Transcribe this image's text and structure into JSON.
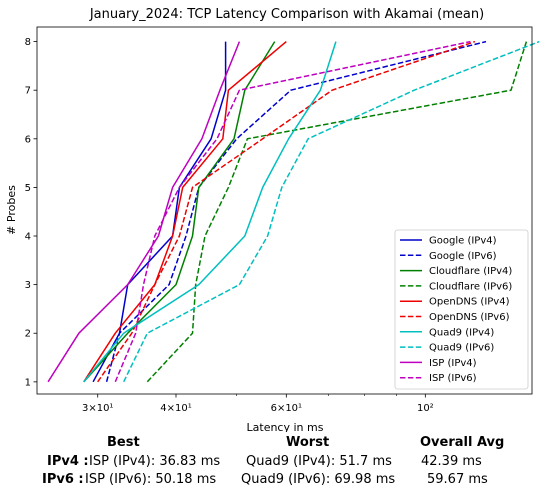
{
  "chart_data": {
    "type": "line",
    "title": "January_2024: TCP Latency Comparison with Akamai (mean)",
    "xlabel": "Latency in ms",
    "ylabel": "# Probes",
    "x_scale": "log",
    "xlim": [
      24,
      148
    ],
    "ylim": [
      0.75,
      8.3
    ],
    "x_ticks": [
      {
        "value": 30,
        "label": "3×10¹"
      },
      {
        "value": 40,
        "label": "4×10¹"
      },
      {
        "value": 60,
        "label": "6×10¹"
      },
      {
        "value": 100,
        "label": "10²"
      }
    ],
    "y_ticks": [
      1,
      2,
      3,
      4,
      5,
      6,
      7,
      8
    ],
    "legend_position": "lower-right",
    "series": [
      {
        "name": "Google (IPv4)",
        "color": "#0000cc",
        "dash": "solid",
        "x": [
          29.5,
          32.5,
          33.5,
          39.5,
          40.5,
          45.5,
          48.0,
          48.0
        ],
        "y": [
          1,
          2,
          3,
          4,
          5,
          6,
          7,
          8
        ]
      },
      {
        "name": "Google (IPv6)",
        "color": "#0000cc",
        "dash": "dashed",
        "x": [
          31.0,
          32.5,
          39.0,
          41.5,
          43.5,
          50.0,
          61.0,
          125.0
        ],
        "y": [
          1,
          2,
          3,
          4,
          5,
          6,
          7,
          8
        ]
      },
      {
        "name": "Cloudflare (IPv4)",
        "color": "#008000",
        "dash": "solid",
        "x": [
          28.5,
          33.5,
          40.0,
          42.5,
          43.5,
          49.5,
          51.5,
          57.5
        ],
        "y": [
          1,
          2,
          3,
          4,
          5,
          6,
          7,
          8
        ]
      },
      {
        "name": "Cloudflare (IPv6)",
        "color": "#008000",
        "dash": "dashed",
        "x": [
          36.0,
          42.5,
          43.0,
          44.5,
          48.5,
          52.0,
          137.0,
          145.0
        ],
        "y": [
          1,
          2,
          3,
          4,
          5,
          6,
          7,
          8
        ]
      },
      {
        "name": "OpenDNS (IPv4)",
        "color": "#ee0000",
        "dash": "solid",
        "x": [
          28.5,
          32.0,
          37.0,
          39.5,
          41.0,
          47.5,
          48.5,
          60.0
        ],
        "y": [
          1,
          2,
          3,
          4,
          5,
          6,
          7,
          8
        ]
      },
      {
        "name": "OpenDNS (IPv6)",
        "color": "#ee0000",
        "dash": "dashed",
        "x": [
          30.0,
          34.0,
          37.0,
          40.5,
          42.5,
          55.0,
          71.0,
          120.0
        ],
        "y": [
          1,
          2,
          3,
          4,
          5,
          6,
          7,
          8
        ]
      },
      {
        "name": "Quad9 (IPv4)",
        "color": "#00bfbf",
        "dash": "solid",
        "x": [
          28.5,
          33.0,
          43.5,
          51.5,
          55.0,
          60.5,
          68.0,
          72.0
        ],
        "y": [
          1,
          2,
          3,
          4,
          5,
          6,
          7,
          8
        ]
      },
      {
        "name": "Quad9 (IPv6)",
        "color": "#00bfbf",
        "dash": "dashed",
        "x": [
          33.0,
          36.0,
          50.5,
          56.0,
          59.0,
          65.0,
          96.0,
          152.0
        ],
        "y": [
          1,
          2,
          3,
          4,
          5,
          6,
          7,
          8
        ]
      },
      {
        "name": "ISP (IPv4)",
        "color": "#bf00bf",
        "dash": "solid",
        "x": [
          25.0,
          28.0,
          33.5,
          37.5,
          39.5,
          44.0,
          47.0,
          50.5
        ],
        "y": [
          1,
          2,
          3,
          4,
          5,
          6,
          7,
          8
        ]
      },
      {
        "name": "ISP (IPv6)",
        "color": "#bf00bf",
        "dash": "dashed",
        "x": [
          32.0,
          34.5,
          35.5,
          37.0,
          40.5,
          46.5,
          50.5,
          118.0
        ],
        "y": [
          1,
          2,
          3,
          4,
          5,
          6,
          7,
          8
        ]
      }
    ]
  },
  "summary": {
    "headers": {
      "best": "Best",
      "worst": "Worst",
      "avg": "Overall Avg"
    },
    "rows": [
      {
        "label": "IPv4 :",
        "best": "ISP (IPv4): 36.83 ms",
        "worst": "Quad9 (IPv4): 51.7 ms",
        "avg": "42.39 ms"
      },
      {
        "label": "IPv6 :",
        "best": "ISP (IPv6): 50.18 ms",
        "worst": "Quad9 (IPv6): 69.98 ms",
        "avg": "59.67 ms"
      }
    ]
  }
}
